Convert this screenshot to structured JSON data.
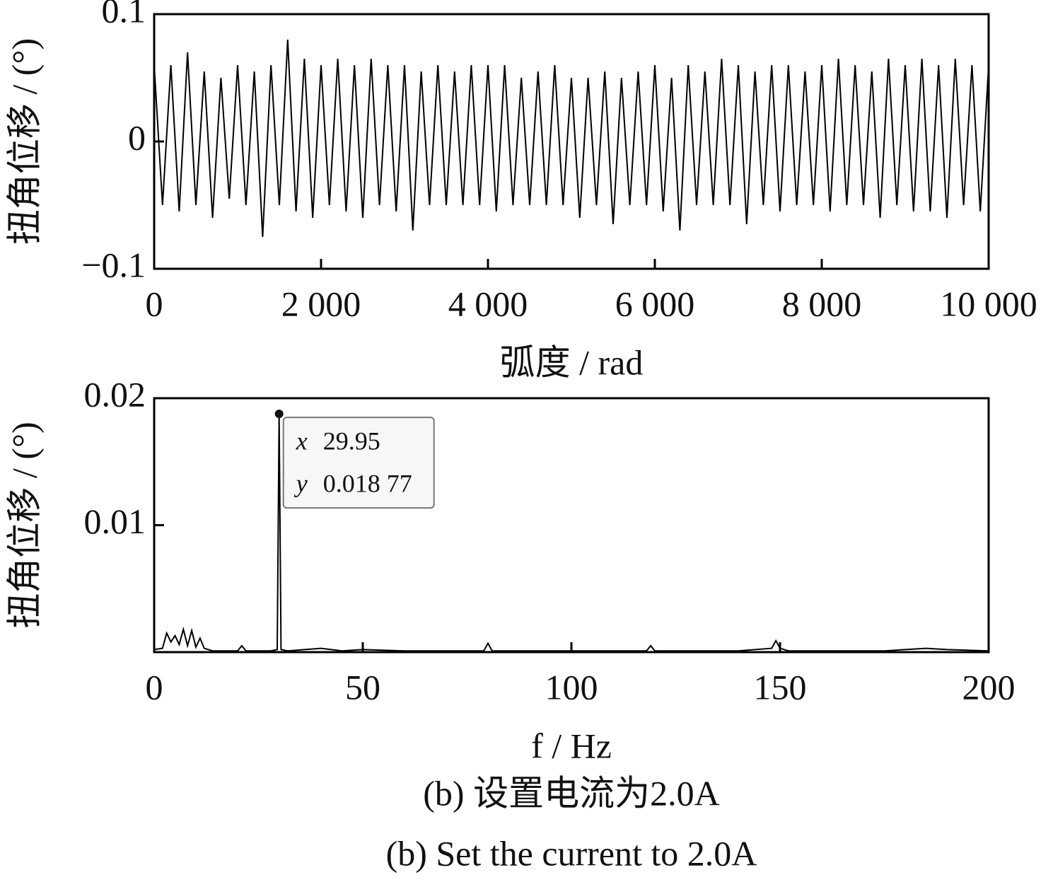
{
  "chart_data": [
    {
      "type": "line",
      "ylabel": "扭角位移 / (°)",
      "xlabel": "弧度 / rad",
      "xlim": [
        0,
        10000
      ],
      "xticks": [
        0,
        {
          "value": 2000,
          "label": "2 000"
        },
        {
          "value": 4000,
          "label": "4 000"
        },
        {
          "value": 6000,
          "label": "6 000"
        },
        {
          "value": 8000,
          "label": "8 000"
        },
        {
          "value": 10000,
          "label": "10 000"
        }
      ],
      "ylim": [
        -0.1,
        0.1
      ],
      "yticks": [
        {
          "value": -0.1,
          "label": "−0.1"
        },
        0,
        0.1
      ],
      "color": "#000000",
      "x": [
        0,
        100,
        200,
        300,
        400,
        500,
        600,
        700,
        800,
        900,
        1000,
        1100,
        1200,
        1300,
        1400,
        1500,
        1600,
        1700,
        1800,
        1900,
        2000,
        2100,
        2200,
        2300,
        2400,
        2500,
        2600,
        2700,
        2800,
        2900,
        3000,
        3100,
        3200,
        3300,
        3400,
        3500,
        3600,
        3700,
        3800,
        3900,
        4000,
        4100,
        4200,
        4300,
        4400,
        4500,
        4600,
        4700,
        4800,
        4900,
        5000,
        5100,
        5200,
        5300,
        5400,
        5500,
        5600,
        5700,
        5800,
        5900,
        6000,
        6100,
        6200,
        6300,
        6400,
        6500,
        6600,
        6700,
        6800,
        6900,
        7000,
        7100,
        7200,
        7300,
        7400,
        7500,
        7600,
        7700,
        7800,
        7900,
        8000,
        8100,
        8200,
        8300,
        8400,
        8500,
        8600,
        8700,
        8800,
        8900,
        9000,
        9100,
        9200,
        9300,
        9400,
        9500,
        9600,
        9700,
        9800,
        9900,
        10000
      ],
      "values": [
        0.06,
        -0.05,
        0.06,
        -0.055,
        0.07,
        -0.05,
        0.055,
        -0.06,
        0.05,
        -0.045,
        0.06,
        -0.05,
        0.055,
        -0.075,
        0.06,
        -0.05,
        0.08,
        -0.055,
        0.065,
        -0.06,
        0.06,
        -0.05,
        0.065,
        -0.055,
        0.06,
        -0.06,
        0.065,
        -0.05,
        0.06,
        -0.055,
        0.06,
        -0.07,
        0.055,
        -0.05,
        0.06,
        -0.05,
        0.055,
        -0.05,
        0.06,
        -0.05,
        0.06,
        -0.055,
        0.06,
        -0.05,
        0.05,
        -0.05,
        0.055,
        -0.05,
        0.06,
        -0.05,
        0.05,
        -0.06,
        0.05,
        -0.05,
        0.055,
        -0.065,
        0.05,
        -0.05,
        0.055,
        -0.05,
        0.06,
        -0.055,
        0.05,
        -0.07,
        0.06,
        -0.05,
        0.055,
        -0.05,
        0.065,
        -0.05,
        0.06,
        -0.065,
        0.055,
        -0.05,
        0.06,
        -0.055,
        0.06,
        -0.05,
        0.055,
        -0.05,
        0.06,
        -0.055,
        0.065,
        -0.05,
        0.06,
        -0.05,
        0.055,
        -0.06,
        0.065,
        -0.05,
        0.06,
        -0.055,
        0.065,
        -0.055,
        0.06,
        -0.06,
        0.065,
        -0.05,
        0.06,
        -0.055,
        0.06
      ]
    },
    {
      "type": "line",
      "ylabel": "扭角位移 / (°)",
      "xlabel": "f / Hz",
      "xlim": [
        0,
        200
      ],
      "xticks": [
        0,
        50,
        100,
        150,
        200
      ],
      "ylim": [
        0,
        0.02
      ],
      "yticks": [
        0.01,
        0.02
      ],
      "color": "#000000",
      "x": [
        0,
        2,
        3,
        4,
        5,
        6,
        7,
        8,
        9,
        10,
        11,
        12,
        13,
        14,
        16,
        20,
        21,
        22,
        25,
        28,
        29.5,
        29.95,
        30.4,
        32,
        40,
        45,
        50,
        60,
        70,
        79,
        80,
        81,
        85,
        100,
        110,
        118,
        119,
        120,
        130,
        140,
        148,
        149,
        150,
        152,
        160,
        175,
        185,
        190,
        200
      ],
      "values": [
        0.0002,
        0.0003,
        0.0015,
        0.0008,
        0.0013,
        0.0006,
        0.0018,
        0.0005,
        0.0017,
        0.0004,
        0.0011,
        0.0003,
        0.0002,
        0.0001,
        0.0001,
        0.0001,
        0.0005,
        0.0001,
        0.0001,
        0.0001,
        0.0002,
        0.01877,
        0.0002,
        0.0001,
        0.0003,
        0.0001,
        0.0002,
        0.0001,
        0.0001,
        0.0001,
        0.0007,
        0.0001,
        0.0001,
        0.0001,
        0.0001,
        0.0001,
        0.0005,
        0.0001,
        0.0001,
        0.0001,
        0.0003,
        0.0009,
        0.0003,
        0.0001,
        0.0001,
        0.0001,
        0.0003,
        0.0002,
        0.0001
      ],
      "annotations": [
        {
          "x": 29.95,
          "y": 0.01877,
          "x_name": "x",
          "y_name": "y",
          "y_label": "0.018 77"
        }
      ]
    },
    {
      "caption_cn": "(b)  设置电流为2.0A",
      "caption_en": "(b)  Set the current to 2.0A"
    }
  ]
}
